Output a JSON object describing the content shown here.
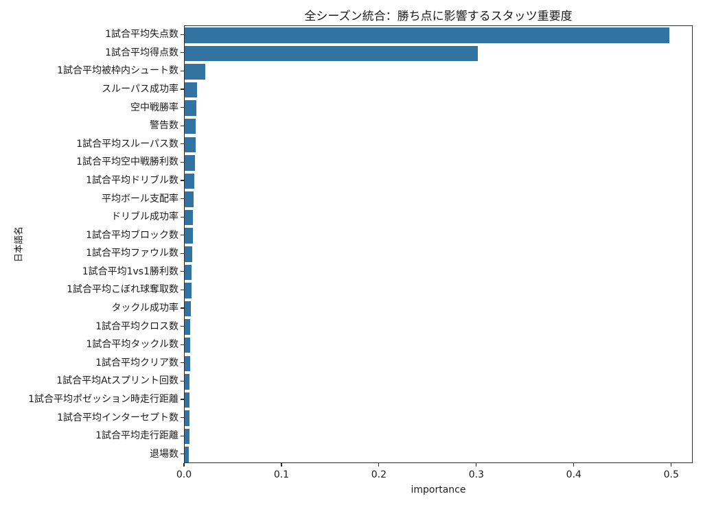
{
  "chart_data": {
    "type": "bar",
    "orientation": "horizontal",
    "title": "全シーズン統合：勝ち点に影響するスタッツ重要度",
    "xlabel": "importance",
    "ylabel": "日本語名",
    "grid": false,
    "legend": false,
    "bar_color": "#3274a1",
    "xlim": [
      0,
      0.522
    ],
    "xticks": [
      0.0,
      0.1,
      0.2,
      0.3,
      0.4,
      0.5
    ],
    "xtick_labels": [
      "0.0",
      "0.1",
      "0.2",
      "0.3",
      "0.4",
      "0.5"
    ],
    "categories": [
      "1試合平均失点数",
      "1試合平均得点数",
      "1試合平均被枠内シュート数",
      "スルーパス成功率",
      "空中戦勝率",
      "警告数",
      "1試合平均スルーパス数",
      "1試合平均空中戦勝利数",
      "1試合平均ドリブル数",
      "平均ボール支配率",
      "ドリブル成功率",
      "1試合平均ブロック数",
      "1試合平均ファウル数",
      "1試合平均1vs1勝利数",
      "1試合平均こぼれ球奪取数",
      "タックル成功率",
      "1試合平均クロス数",
      "1試合平均タックル数",
      "1試合平均クリア数",
      "1試合平均Atスプリント回数",
      "1試合平均ポゼッション時走行距離",
      "1試合平均インターセプト数",
      "1試合平均走行距離",
      "退場数"
    ],
    "values": [
      0.497,
      0.301,
      0.021,
      0.0125,
      0.012,
      0.0113,
      0.011,
      0.0105,
      0.0097,
      0.0092,
      0.0088,
      0.0085,
      0.0075,
      0.0069,
      0.0068,
      0.0063,
      0.0059,
      0.0055,
      0.0054,
      0.0052,
      0.005,
      0.0049,
      0.0047,
      0.004
    ]
  }
}
